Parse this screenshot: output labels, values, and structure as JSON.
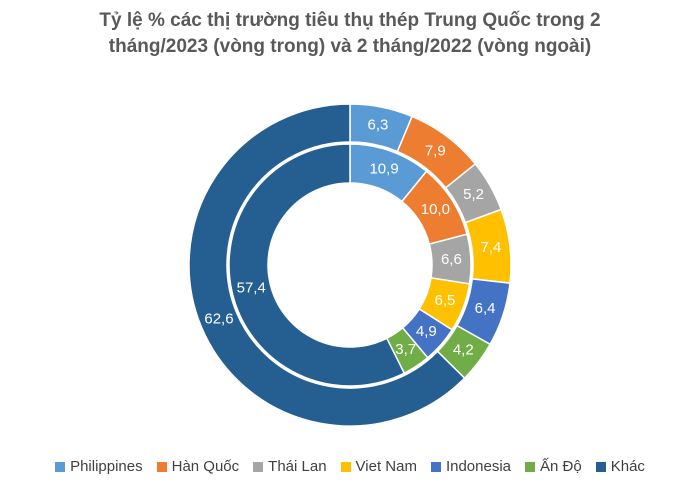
{
  "chart_data": {
    "type": "donut",
    "title": "Tỷ lệ % các thị trường tiêu thụ thép Trung Quốc trong 2 tháng/2023 (vòng trong) và 2 tháng/2022 (vòng ngoài)",
    "categories": [
      "Philippines",
      "Hàn Quốc",
      "Thái Lan",
      "Viet Nam",
      "Indonesia",
      "Ấn Độ",
      "Khác"
    ],
    "colors": [
      "#5b9bd5",
      "#ed7d31",
      "#a5a5a5",
      "#ffc000",
      "#4472c4",
      "#70ad47",
      "#255e91"
    ],
    "rings": [
      {
        "values": [
          10.9,
          10.0,
          6.6,
          6.5,
          4.9,
          3.7,
          57.4
        ],
        "value_labels": [
          "10,9",
          "10,0",
          "6,6",
          "6,5",
          "4,9",
          "3,7",
          "57,4"
        ]
      },
      {
        "values": [
          6.3,
          7.9,
          5.2,
          7.4,
          6.4,
          4.2,
          62.6
        ],
        "value_labels": [
          "6,3",
          "7,9",
          "5,2",
          "7,4",
          "6,4",
          "4,2",
          "62,6"
        ]
      }
    ],
    "legend": "bottom"
  }
}
